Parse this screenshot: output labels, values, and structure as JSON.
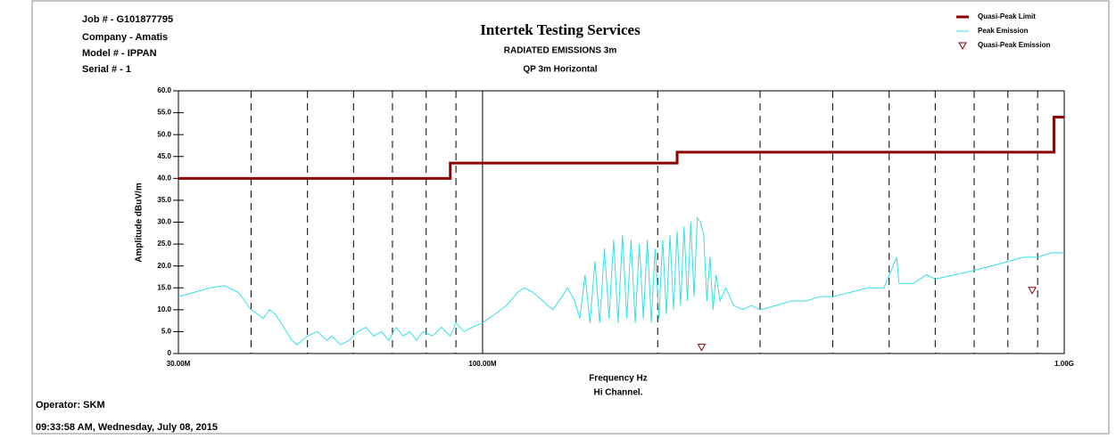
{
  "header": {
    "job": "Job # - G101877795",
    "company": "Company - Amatis",
    "model": "Model # - IPPAN",
    "serial": "Serial # - 1"
  },
  "footer": {
    "operator": "Operator: SKM",
    "timestamp": "09:33:58 AM, Wednesday, July 08, 2015"
  },
  "chart_data": {
    "type": "line",
    "title": "Intertek Testing Services",
    "subtitle": "RADIATED EMISSIONS 3m",
    "subtitle2": "QP 3m Horizontal",
    "x_label": "Frequency Hz",
    "x_label2": "Hi Channel.",
    "y_label": "Amplitude dBuV/m",
    "xscale": "log",
    "xlim": [
      30000000,
      1000000000
    ],
    "xticks": [
      {
        "value": 30000000,
        "label": "30.00M"
      },
      {
        "value": 100000000,
        "label": "100.00M"
      },
      {
        "value": 1000000000,
        "label": "1.00G"
      }
    ],
    "xminor": [
      40000000,
      50000000,
      60000000,
      70000000,
      80000000,
      90000000,
      200000000,
      300000000,
      400000000,
      500000000,
      600000000,
      700000000,
      800000000,
      900000000
    ],
    "ylim": [
      0,
      60
    ],
    "yticks": [
      0,
      {
        "value": 5,
        "label": "5.0"
      },
      {
        "value": 10,
        "label": "10.0"
      },
      {
        "value": 15,
        "label": "15.0"
      },
      {
        "value": 20,
        "label": "20.0"
      },
      {
        "value": 25,
        "label": "25.0"
      },
      {
        "value": 30,
        "label": "30.0"
      },
      {
        "value": 35,
        "label": "35.0"
      },
      {
        "value": 40,
        "label": "40.0"
      },
      {
        "value": 45,
        "label": "45.0"
      },
      {
        "value": 50,
        "label": "50.0"
      },
      {
        "value": 55,
        "label": "55.0"
      },
      {
        "value": 60,
        "label": "60.0"
      }
    ],
    "legend": "top-right",
    "series": [
      {
        "name": "Quasi-Peak Limit",
        "color": "#8b0000",
        "style": "line",
        "width": 3,
        "x": [
          30000000,
          88000000,
          88000000,
          216000000,
          216000000,
          960000000,
          960000000,
          1000000000
        ],
        "values": [
          40,
          40,
          43.5,
          43.5,
          46,
          46,
          54,
          54
        ]
      },
      {
        "name": "Peak Emission",
        "color": "#33e0e8",
        "style": "line",
        "width": 1,
        "x": [
          30000000,
          32000000,
          34000000,
          36000000,
          38000000,
          39000000,
          40000000,
          41000000,
          42000000,
          43000000,
          44000000,
          45000000,
          46000000,
          47000000,
          48000000,
          49000000,
          50000000,
          52000000,
          54000000,
          55000000,
          57000000,
          59000000,
          61000000,
          63000000,
          65000000,
          67000000,
          69000000,
          71000000,
          73000000,
          75000000,
          77000000,
          79000000,
          82000000,
          85000000,
          88000000,
          90000000,
          93000000,
          96000000,
          100000000,
          105000000,
          110000000,
          115000000,
          118000000,
          122000000,
          127000000,
          132000000,
          137000000,
          140000000,
          144000000,
          147000000,
          150000000,
          153000000,
          156000000,
          159000000,
          162000000,
          165000000,
          168000000,
          171000000,
          174000000,
          177000000,
          180000000,
          183000000,
          186000000,
          189000000,
          192000000,
          195000000,
          198000000,
          201000000,
          204000000,
          207000000,
          210000000,
          213000000,
          216000000,
          219000000,
          222000000,
          225000000,
          228000000,
          231000000,
          234000000,
          237000000,
          240000000,
          243000000,
          246000000,
          249000000,
          252000000,
          256000000,
          262000000,
          270000000,
          280000000,
          290000000,
          300000000,
          320000000,
          340000000,
          360000000,
          380000000,
          400000000,
          430000000,
          460000000,
          490000000,
          515000000,
          520000000,
          550000000,
          580000000,
          600000000,
          650000000,
          700000000,
          750000000,
          800000000,
          850000000,
          900000000,
          950000000,
          1000000000
        ],
        "values": [
          13,
          14,
          15,
          15.5,
          14,
          12,
          10,
          9,
          8,
          10,
          9,
          7,
          5,
          3,
          2,
          3,
          4,
          5,
          3,
          4,
          2,
          3,
          5,
          6,
          4,
          5,
          3,
          6,
          4,
          5,
          3,
          5,
          4,
          6,
          4,
          7,
          5,
          6,
          7,
          9,
          11,
          14,
          15,
          14,
          12,
          10,
          13,
          15,
          12,
          8,
          18,
          7,
          21,
          7,
          24,
          8,
          26,
          7,
          27,
          8,
          26,
          7,
          25,
          8,
          26,
          7,
          24,
          8,
          26,
          9,
          27,
          10,
          28,
          11,
          29,
          12,
          30,
          13,
          31,
          30,
          27,
          12,
          22,
          10,
          18,
          12,
          15,
          11,
          10,
          11,
          10,
          11,
          12,
          12,
          13,
          13,
          14,
          15,
          15,
          22,
          16,
          16,
          18,
          17,
          18,
          19,
          20,
          21,
          22,
          22,
          23,
          23
        ]
      },
      {
        "name": "Quasi-Peak Emission",
        "color": "#8b0000",
        "style": "triangle-down",
        "x": [
          238000000,
          881000000
        ],
        "values": [
          1.5,
          14.5
        ]
      }
    ]
  }
}
